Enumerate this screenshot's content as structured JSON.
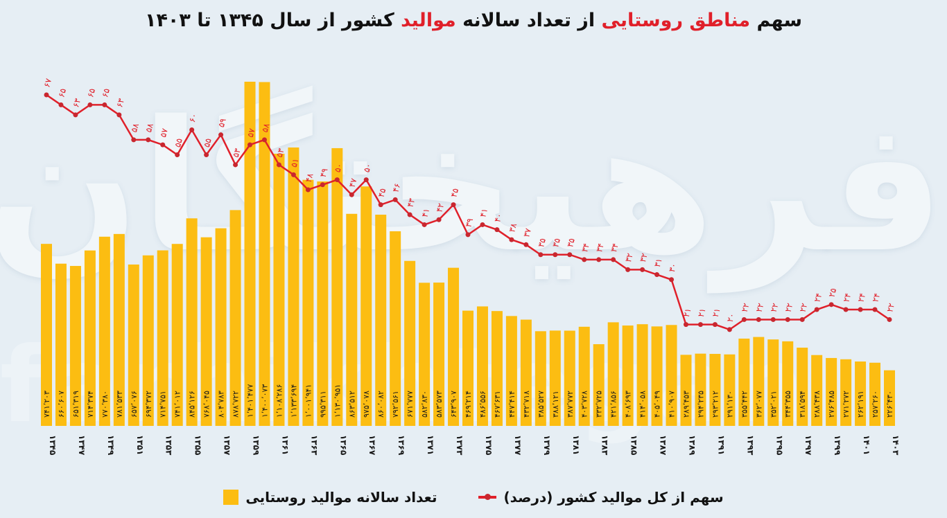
{
  "title": {
    "parts": [
      {
        "text": "سهم ",
        "highlight": false
      },
      {
        "text": "مناطق روستایی",
        "highlight": true
      },
      {
        "text": " از تعداد سالانه ",
        "highlight": false
      },
      {
        "text": "موالید",
        "highlight": true
      },
      {
        "text": " کشور از سال ۱۳۴۵ تا ۱۴۰۳",
        "highlight": false
      }
    ]
  },
  "legend": {
    "line_label": "سهم از کل موالید کشور (درصد)",
    "bar_label": "تعداد سالانه موالید روستایی"
  },
  "watermark": {
    "line1": "فرهیختگان",
    "line2": "farhikhtegan"
  },
  "colors": {
    "bar": "#fcbd12",
    "line": "#e0202a",
    "background": "#e6eef4",
    "title_highlight": "#e0202a"
  },
  "chart_data": {
    "type": "bar+line",
    "title": "سهم مناطق روستایی از تعداد سالانه موالید کشور از سال ۱۳۴۵ تا ۱۴۰۳",
    "xlabel": "",
    "ylabel": "",
    "categories": [
      1345,
      1346,
      1347,
      1348,
      1349,
      1350,
      1351,
      1352,
      1353,
      1354,
      1355,
      1356,
      1357,
      1358,
      1359,
      1360,
      1361,
      1362,
      1363,
      1364,
      1365,
      1366,
      1367,
      1368,
      1369,
      1370,
      1371,
      1372,
      1373,
      1374,
      1375,
      1376,
      1377,
      1378,
      1379,
      1380,
      1381,
      1382,
      1383,
      1384,
      1385,
      1386,
      1387,
      1388,
      1389,
      1390,
      1391,
      1392,
      1393,
      1394,
      1395,
      1396,
      1397,
      1398,
      1399,
      1400,
      1401,
      1402,
      1403
    ],
    "x_tick_labels": [
      "۱۳۴۵",
      "۱۳۴۷",
      "۱۳۴۹",
      "۱۳۵۱",
      "۱۳۵۳",
      "۱۳۵۵",
      "۱۳۵۷",
      "۱۳۵۹",
      "۱۳۶۱",
      "۱۳۶۳",
      "۱۳۶۵",
      "۱۳۶۷",
      "۱۳۶۹",
      "۱۳۷۱",
      "۱۳۷۳",
      "۱۳۷۵",
      "۱۳۷۷",
      "۱۳۷۹",
      "۱۳۸۱",
      "۱۳۸۳",
      "۱۳۸۵",
      "۱۳۸۷",
      "۱۳۸۹",
      "۱۳۹۱",
      "۱۳۹۳",
      "۱۳۹۵",
      "۱۳۹۷",
      "۱۳۹۹",
      "۱۴۰۱",
      "۱۴۰۳"
    ],
    "series": [
      {
        "name": "تعداد سالانه موالید روستایی",
        "type": "bar",
        "values": [
          741203,
          660607,
          651319,
          714374,
          770380,
          781533,
          657076,
          694372,
          714751,
          741012,
          845126,
          768045,
          804783,
          878722,
          1401477,
          1400073,
          1108286,
          1133694,
          1001941,
          995311,
          1130951,
          863512,
          975078,
          860082,
          792561,
          671777,
          582830,
          583573,
          643907,
          469214,
          486556,
          467631,
          447414,
          432718,
          385527,
          388121,
          387772,
          403728,
          332725,
          421856,
          408693,
          414058,
          405049,
          410907,
          289453,
          294235,
          293212,
          291130,
          355442,
          362077,
          352021,
          344355,
          318594,
          288438,
          276485,
          271272,
          262191,
          257260,
          226430
        ]
      },
      {
        "name": "سهم از کل موالید کشور (درصد)",
        "type": "line",
        "values": [
          67,
          65,
          63,
          65,
          65,
          63,
          58,
          58,
          57,
          55,
          60,
          55,
          59,
          53,
          57,
          58,
          53,
          51,
          48,
          49,
          50,
          47,
          50,
          45,
          46,
          43,
          41,
          42,
          45,
          39,
          41,
          40,
          38,
          37,
          35,
          35,
          35,
          34,
          34,
          34,
          32,
          32,
          31,
          30,
          21,
          21,
          21,
          20,
          22,
          22,
          22,
          22,
          22,
          24,
          25,
          24,
          24,
          24,
          22
        ]
      }
    ],
    "grid": false,
    "legend_position": "bottom"
  }
}
